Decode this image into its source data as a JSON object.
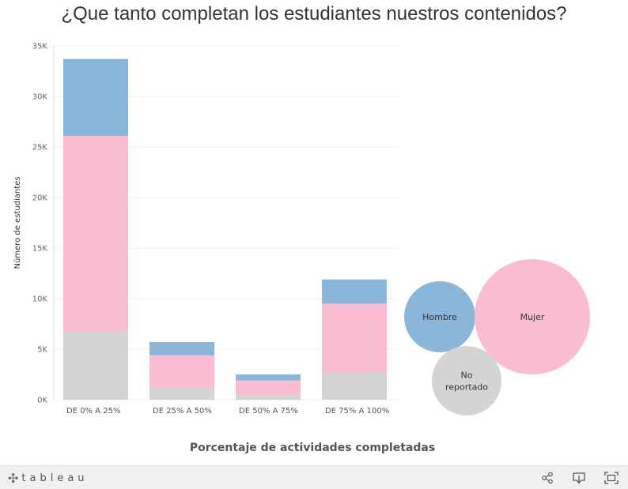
{
  "title": "¿Que tanto completan los estudiantes nuestros contenidos?",
  "colors": {
    "hombre": "#8ab6d9",
    "mujer": "#f9bcd2",
    "no_reportado": "#d4d4d4",
    "grid": "#ececec"
  },
  "chart_data": [
    {
      "type": "bar",
      "stacked": true,
      "categories": [
        "DE 0% A 25%",
        "DE 25% A 50%",
        "DE 50% A 75%",
        "DE 75% A 100%"
      ],
      "series": [
        {
          "key": "no_reportado",
          "values": [
            6800,
            1200,
            500,
            2700
          ]
        },
        {
          "key": "mujer",
          "values": [
            19300,
            3200,
            1400,
            6800
          ]
        },
        {
          "key": "hombre",
          "values": [
            7600,
            1300,
            600,
            2400
          ]
        }
      ],
      "xlabel": "Porcentaje de actividades completadas",
      "ylabel": "Número de estudiantes",
      "ylim": [
        0,
        35000
      ],
      "yticks": [
        0,
        5000,
        10000,
        15000,
        20000,
        25000,
        30000,
        35000
      ],
      "ytick_labels": [
        "0K",
        "5K",
        "10K",
        "15K",
        "20K",
        "25K",
        "30K",
        "35K"
      ],
      "grid": true
    },
    {
      "type": "bubble",
      "items": [
        {
          "label": "Hombre",
          "key": "hombre"
        },
        {
          "label": "Mujer",
          "key": "mujer"
        },
        {
          "label": "No\nreportado",
          "key": "no_reportado"
        }
      ]
    }
  ],
  "footer": {
    "logo_text": "tableau",
    "share_icon": "share-icon",
    "download_icon": "download-icon",
    "fullscreen_icon": "fullscreen-icon"
  }
}
